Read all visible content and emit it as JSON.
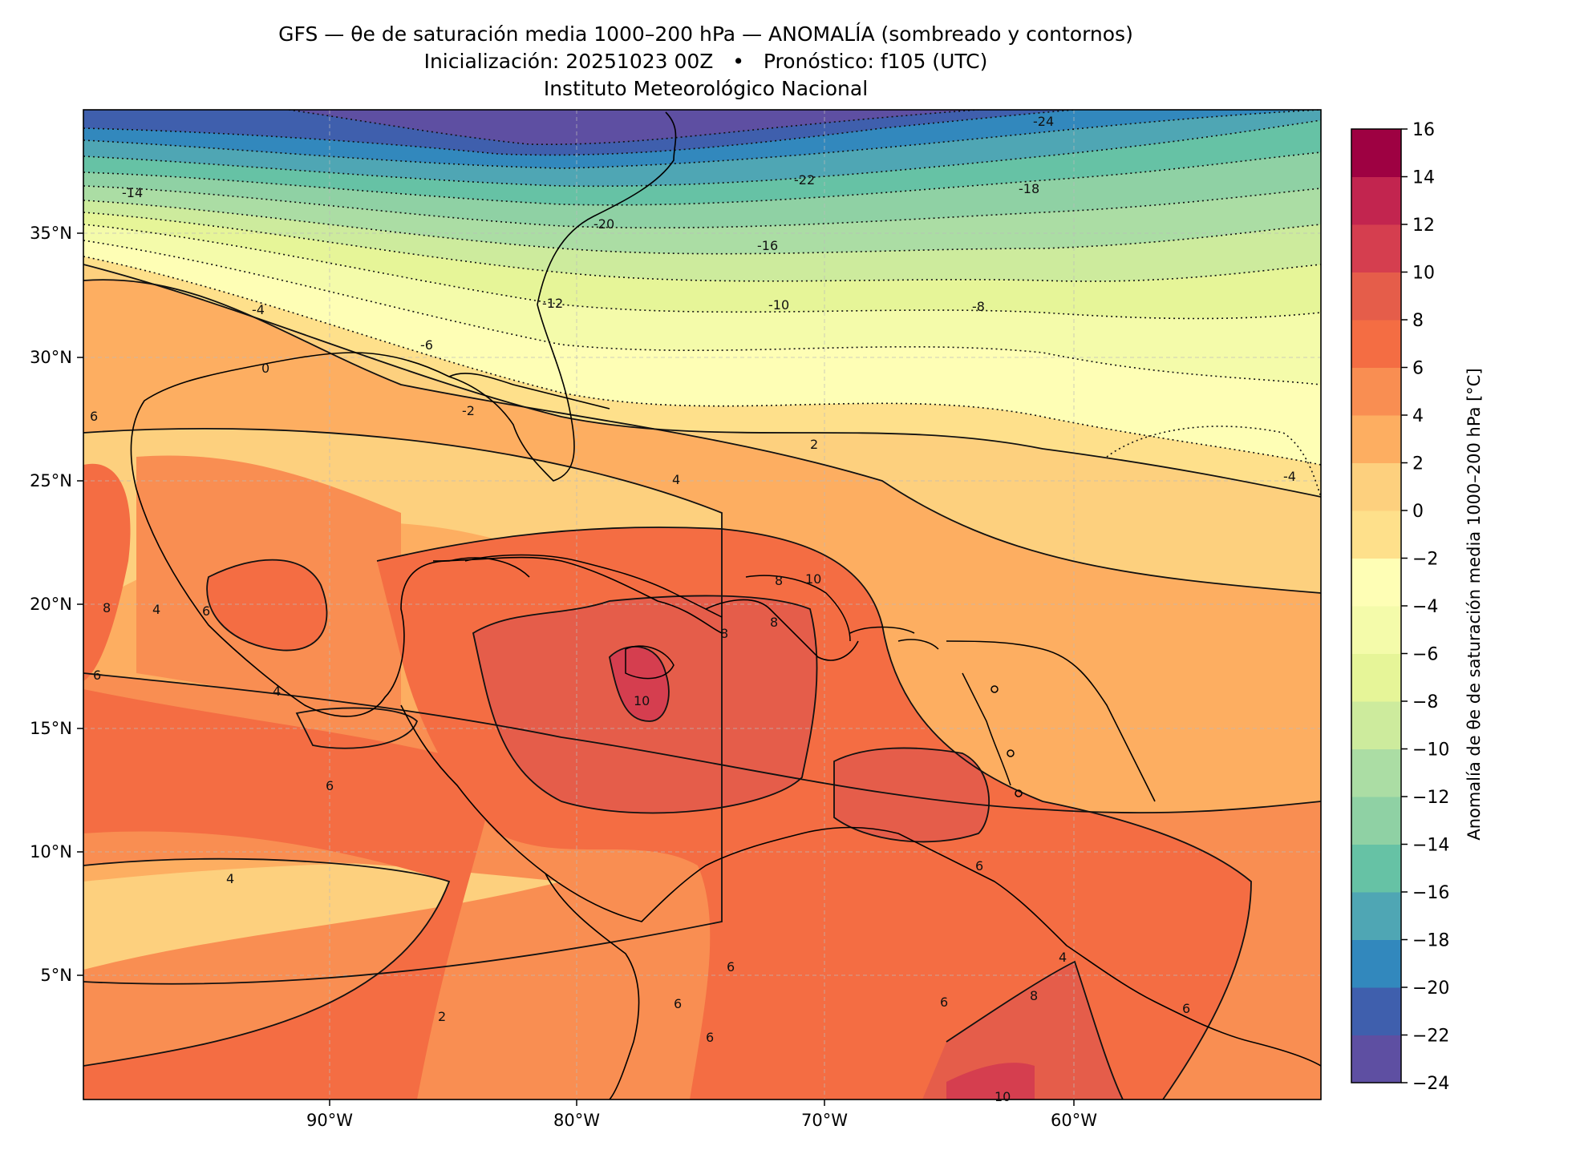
{
  "title": {
    "line1": "GFS — θe de saturación media 1000–200 hPa — ANOMALÍA (sombreado y contornos)",
    "line2": "Inicialización: 20251023 00Z   •   Pronóstico: f105 (UTC)",
    "line3": "Instituto Meteorológico Nacional"
  },
  "map": {
    "lon_range": [
      -100,
      -50
    ],
    "lat_range": [
      0,
      40
    ],
    "lon_ticks": [
      "90°W",
      "80°W",
      "70°W",
      "60°W"
    ],
    "lat_ticks": [
      "35°N",
      "30°N",
      "25°N",
      "20°N",
      "15°N",
      "10°N",
      "5°N"
    ],
    "gridlines": true
  },
  "colorbar": {
    "label": "Anomalía de θe de saturación media 1000–200 hPa [°C]",
    "levels": [
      -24,
      -22,
      -20,
      -18,
      -16,
      -14,
      -12,
      -10,
      -8,
      -6,
      -4,
      -2,
      0,
      2,
      4,
      6,
      8,
      10,
      12,
      14,
      16
    ],
    "tick_labels": [
      "16",
      "14",
      "12",
      "10",
      "8",
      "6",
      "4",
      "2",
      "0",
      "−2",
      "−4",
      "−6",
      "−8",
      "−10",
      "−12",
      "−14",
      "−16",
      "−18",
      "−20",
      "−22",
      "−24"
    ],
    "colors": [
      "#5e4fa2",
      "#3f5fad",
      "#3288bd",
      "#4fa6b4",
      "#66c2a5",
      "#8fd1a4",
      "#abdda4",
      "#cdeb9d",
      "#e6f598",
      "#f4fbaa",
      "#fefeb5",
      "#fee08b",
      "#fdd07e",
      "#fdae61",
      "#f98e52",
      "#f46d43",
      "#e55d4a",
      "#d53e4f",
      "#c2254f",
      "#9e0142"
    ]
  },
  "contour_labels": [
    {
      "text": "-24"
    },
    {
      "text": "-22"
    },
    {
      "text": "-20"
    },
    {
      "text": "-18"
    },
    {
      "text": "-16"
    },
    {
      "text": "-14"
    },
    {
      "text": "-12"
    },
    {
      "text": "-10"
    },
    {
      "text": "-8"
    },
    {
      "text": "-4"
    },
    {
      "text": "-6"
    },
    {
      "text": "-2"
    },
    {
      "text": "0"
    },
    {
      "text": "2"
    },
    {
      "text": "-4"
    },
    {
      "text": "4"
    },
    {
      "text": "6"
    },
    {
      "text": "8"
    },
    {
      "text": "10"
    },
    {
      "text": "8"
    },
    {
      "text": "8"
    },
    {
      "text": "10"
    },
    {
      "text": "6"
    },
    {
      "text": "4"
    },
    {
      "text": "4"
    },
    {
      "text": "6"
    },
    {
      "text": "4"
    },
    {
      "text": "2"
    },
    {
      "text": "6"
    },
    {
      "text": "8"
    },
    {
      "text": "6"
    },
    {
      "text": "6"
    },
    {
      "text": "4"
    },
    {
      "text": "6"
    },
    {
      "text": "8"
    },
    {
      "text": "10"
    },
    {
      "text": "6"
    },
    {
      "text": "6"
    },
    {
      "text": "6"
    }
  ]
}
